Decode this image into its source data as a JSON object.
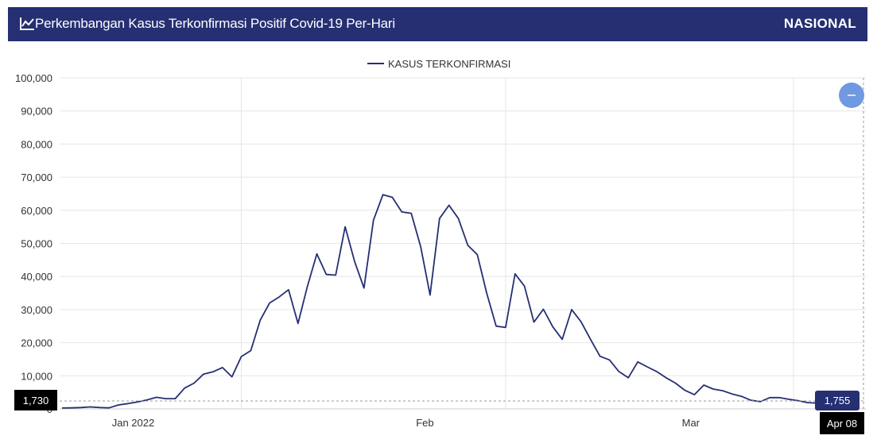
{
  "header": {
    "title": "Perkembangan Kasus Terkonfirmasi Positif Covid-19 Per-Hari",
    "scope": "NASIONAL",
    "icon": "line-chart-icon",
    "background_color": "#252f72"
  },
  "zoom_button": {
    "icon": "minus-icon",
    "color": "#6f99e0"
  },
  "crosshair": {
    "y_value_label": "1,730",
    "point_value_label": "1,755",
    "x_label": "Apr 08"
  },
  "chart_data": {
    "type": "line",
    "legend": {
      "position": "top-center"
    },
    "series": [
      {
        "name": "KASUS TERKONFIRMASI",
        "color": "#252f72",
        "values": [
          265,
          300,
          400,
          600,
          400,
          300,
          1200,
          1600,
          2100,
          2700,
          3500,
          3100,
          3100,
          6300,
          7800,
          10500,
          11200,
          12500,
          9700,
          15800,
          17600,
          26800,
          32000,
          33800,
          36000,
          25800,
          37000,
          46800,
          40600,
          40400,
          55000,
          44500,
          36500,
          57000,
          64700,
          63900,
          59500,
          59100,
          49000,
          34400,
          57500,
          61500,
          57500,
          49400,
          46600,
          35000,
          25000,
          24600,
          40800,
          37100,
          26200,
          30100,
          24800,
          21000,
          30000,
          26300,
          21000,
          15900,
          14800,
          11300,
          9400,
          14200,
          12700,
          11300,
          9400,
          7800,
          5600,
          4300,
          7200,
          6000,
          5500,
          4500,
          3800,
          2600,
          2200,
          3400,
          3400,
          2900,
          2500,
          1900,
          1755
        ]
      }
    ],
    "x_ticks": [
      "Jan 2022",
      "Feb",
      "Mar"
    ],
    "y_ticks": [
      "100,000",
      "90,000",
      "80,000",
      "70,000",
      "60,000",
      "50,000",
      "40,000",
      "30,000",
      "20,000",
      "10,000",
      "0"
    ],
    "ylim": [
      0,
      100000
    ],
    "grid": true
  }
}
